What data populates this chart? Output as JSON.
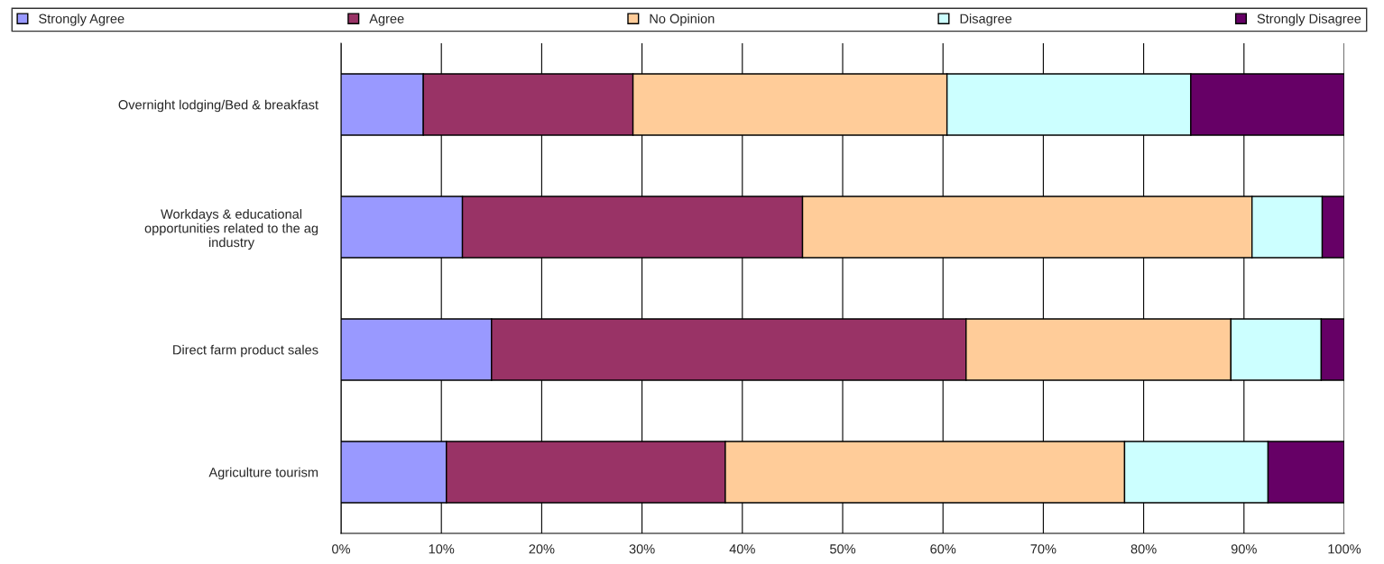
{
  "chart_data": {
    "type": "bar",
    "orientation": "horizontal",
    "stacked": true,
    "categories": [
      "Overnight lodging/Bed & breakfast",
      "Workdays & educational\nopportunities related to the ag\nindustry",
      "Direct farm product sales",
      "Agriculture tourism"
    ],
    "series": [
      {
        "name": "Strongly Agree",
        "color": "#9999ff",
        "values": [
          8.2,
          12.1,
          15.0,
          10.5
        ]
      },
      {
        "name": "Agree",
        "color": "#993366",
        "values": [
          20.9,
          33.9,
          47.3,
          27.8
        ]
      },
      {
        "name": "No Opinion",
        "color": "#ffcc99",
        "values": [
          31.3,
          44.8,
          26.4,
          39.8
        ]
      },
      {
        "name": "Disagree",
        "color": "#ccffff",
        "values": [
          24.3,
          7.0,
          9.0,
          14.3
        ]
      },
      {
        "name": "Strongly Disagree",
        "color": "#660066",
        "values": [
          15.3,
          2.2,
          2.3,
          7.6
        ]
      }
    ],
    "xlim": [
      0,
      100
    ],
    "xticks": [
      {
        "value": 0,
        "label": "0%"
      },
      {
        "value": 10,
        "label": "10%"
      },
      {
        "value": 20,
        "label": "20%"
      },
      {
        "value": 30,
        "label": "30%"
      },
      {
        "value": 40,
        "label": "40%"
      },
      {
        "value": 50,
        "label": "50%"
      },
      {
        "value": 60,
        "label": "60%"
      },
      {
        "value": 70,
        "label": "70%"
      },
      {
        "value": 80,
        "label": "80%"
      },
      {
        "value": 90,
        "label": "90%"
      },
      {
        "value": 100,
        "label": "100%"
      }
    ],
    "grid": "x",
    "legend": "top"
  }
}
